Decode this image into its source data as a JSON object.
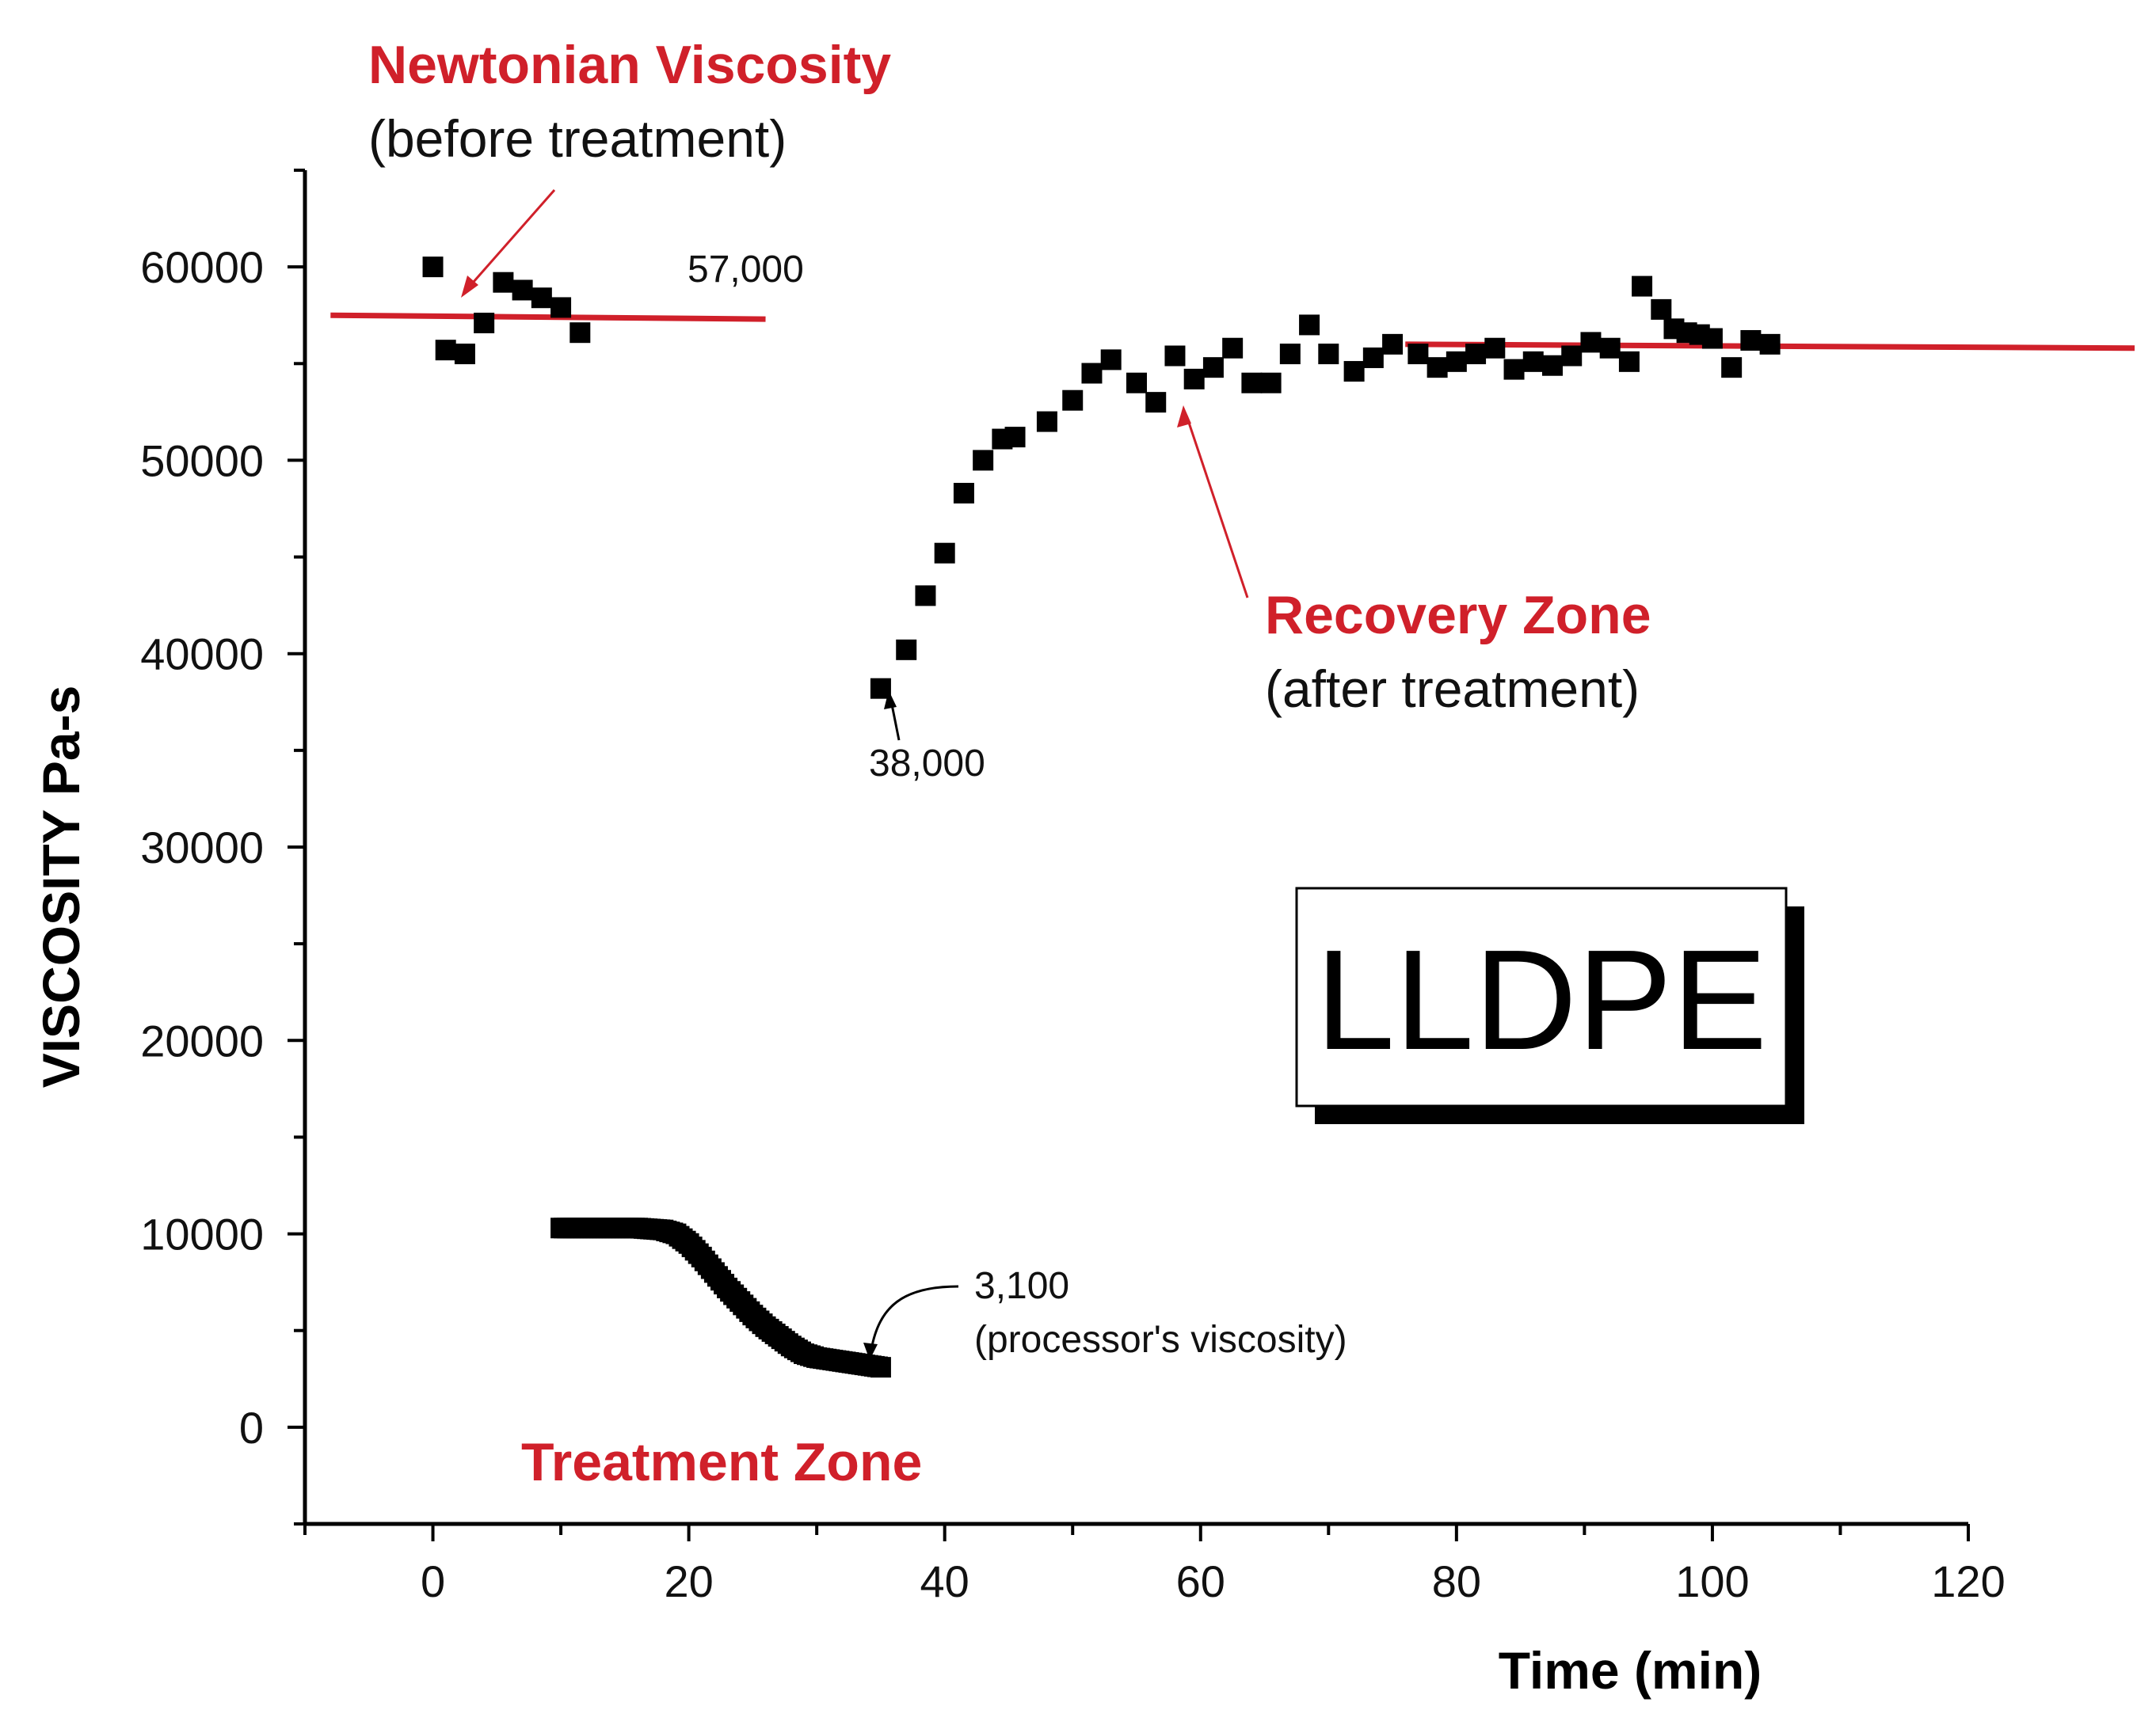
{
  "chart_data": {
    "type": "scatter",
    "title": "",
    "xlabel": "Time (min)",
    "ylabel": "VISCOSITY Pa-s",
    "xlim": [
      -10,
      120
    ],
    "ylim": [
      -5000,
      65000
    ],
    "xticks": [
      0,
      20,
      40,
      60,
      80,
      100,
      120
    ],
    "yticks": [
      0,
      10000,
      20000,
      30000,
      40000,
      50000,
      60000
    ],
    "grid": false,
    "series": [
      {
        "name": "Before treatment",
        "x": [
          0,
          1,
          2.5,
          4,
          5.5,
          7,
          8.5,
          10,
          11.5
        ],
        "y": [
          60000,
          55700,
          55500,
          57100,
          59200,
          58800,
          58400,
          57900,
          56600
        ]
      },
      {
        "name": "Treatment",
        "x": [
          10,
          11,
          12,
          13,
          14,
          15,
          16,
          17,
          18,
          19,
          20,
          21,
          22,
          23,
          24,
          25,
          26,
          27,
          28,
          29,
          30,
          31,
          32,
          33,
          34,
          35
        ],
        "y": [
          10300,
          10300,
          10300,
          10300,
          10300,
          10300,
          10300,
          10250,
          10200,
          10000,
          9500,
          8800,
          8000,
          7200,
          6500,
          5800,
          5200,
          4700,
          4200,
          3800,
          3600,
          3500,
          3400,
          3300,
          3200,
          3100
        ]
      },
      {
        "name": "Recovery",
        "x": [
          35,
          37,
          38.5,
          40,
          41.5,
          43,
          44.5,
          45.5,
          48,
          50,
          51.5,
          53,
          55,
          56.5,
          58,
          59.5,
          61,
          62.5,
          64,
          65.5,
          67,
          68.5,
          70,
          72,
          73.5,
          75,
          77,
          78.5,
          80,
          81.5,
          83,
          84.5,
          86,
          87.5,
          89,
          90.5,
          92,
          93.5,
          94.5,
          96,
          97,
          98,
          99,
          100,
          101.5,
          103,
          104.5
        ],
        "y": [
          38200,
          40200,
          43000,
          45200,
          48300,
          50000,
          51100,
          51200,
          52000,
          53100,
          54500,
          55200,
          54000,
          53000,
          55400,
          54200,
          54800,
          55800,
          54000,
          54000,
          55500,
          57000,
          55500,
          54600,
          55300,
          56000,
          55500,
          54800,
          55100,
          55500,
          55800,
          54700,
          55100,
          54900,
          55400,
          56100,
          55800,
          55100,
          59000,
          57800,
          56800,
          56600,
          56500,
          56300,
          54800,
          56200,
          56000
        ]
      }
    ],
    "reference_lines": [
      {
        "name": "Newtonian viscosity",
        "x_start": -8,
        "x_end": 26,
        "y_start": 57500,
        "y_end": 57300,
        "color": "#d0202a"
      },
      {
        "name": "Recovery level",
        "x_start": 76,
        "x_end": 133,
        "y_start": 56000,
        "y_end": 55800,
        "color": "#d0202a"
      }
    ],
    "annotations": {
      "newtonian_title": "Newtonian Viscosity",
      "newtonian_sub": "(before treatment)",
      "value_57000": "57,000",
      "value_38000": "38,000",
      "recovery_title": "Recovery Zone",
      "recovery_sub": "(after treatment)",
      "value_3100": "3,100",
      "processor_note": "(processor's viscosity)",
      "treatment_title": "Treatment Zone",
      "material_label": "LLDPE"
    },
    "colors": {
      "marker": "#000000",
      "reference": "#d0202a",
      "annotation_red": "#d0202a"
    }
  }
}
